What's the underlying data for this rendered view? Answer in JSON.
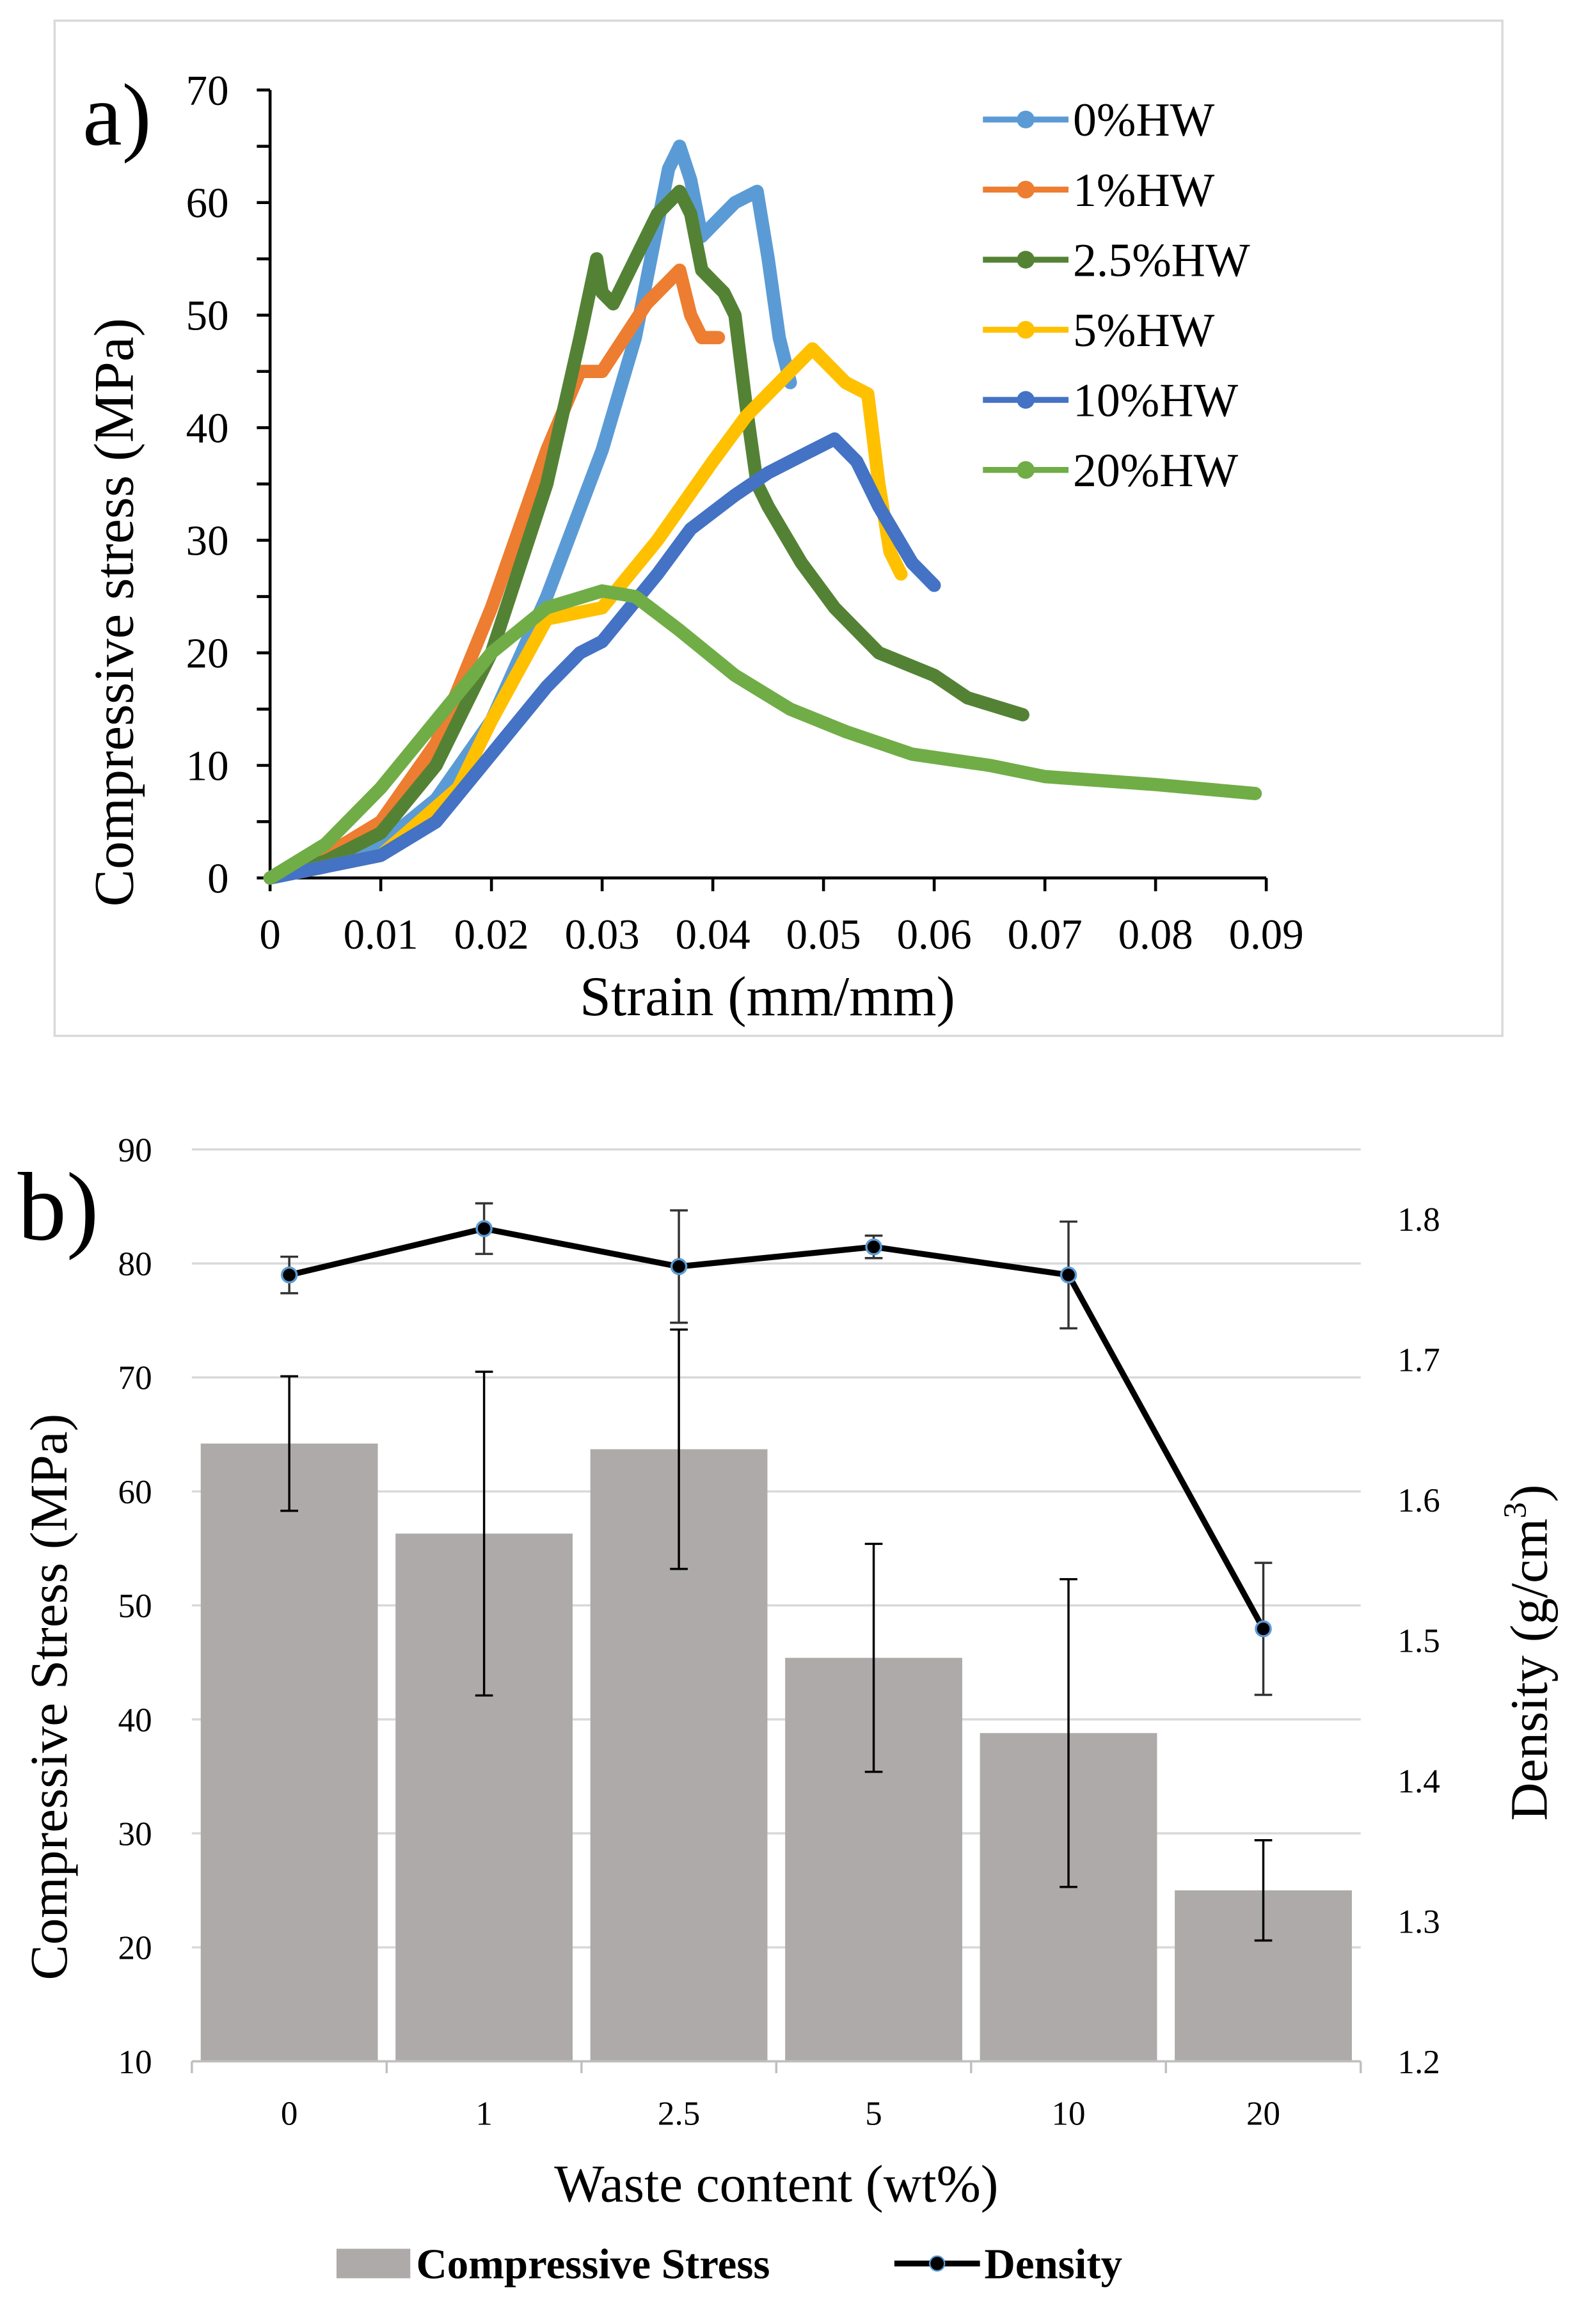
{
  "chart_data": [
    {
      "type": "line",
      "panel_label": "a)",
      "xlabel": "Strain (mm/mm)",
      "ylabel": "Compressive stress (MPa)",
      "xlim": [
        0,
        0.09
      ],
      "ylim": [
        0,
        70
      ],
      "xticks": [
        "0",
        "0.01",
        "0.02",
        "0.03",
        "0.04",
        "0.05",
        "0.06",
        "0.07",
        "0.08",
        "0.09"
      ],
      "yticks": [
        "0",
        "10",
        "20",
        "30",
        "40",
        "50",
        "60",
        "70"
      ],
      "legend_position": "top-right",
      "series": [
        {
          "name": "0%HW",
          "color": "#5b9bd5",
          "points": [
            [
              0,
              0
            ],
            [
              0.005,
              1
            ],
            [
              0.01,
              3
            ],
            [
              0.015,
              7
            ],
            [
              0.02,
              14
            ],
            [
              0.025,
              25
            ],
            [
              0.03,
              38
            ],
            [
              0.033,
              48
            ],
            [
              0.035,
              58
            ],
            [
              0.036,
              63
            ],
            [
              0.037,
              65
            ],
            [
              0.038,
              62
            ],
            [
              0.039,
              57
            ],
            [
              0.04,
              58
            ],
            [
              0.042,
              60
            ],
            [
              0.044,
              61
            ],
            [
              0.045,
              55
            ],
            [
              0.046,
              48
            ],
            [
              0.047,
              44
            ]
          ]
        },
        {
          "name": "1%HW",
          "color": "#ed7d31",
          "points": [
            [
              0,
              0
            ],
            [
              0.005,
              2
            ],
            [
              0.01,
              5
            ],
            [
              0.015,
              12
            ],
            [
              0.02,
              24
            ],
            [
              0.025,
              38
            ],
            [
              0.028,
              45
            ],
            [
              0.03,
              45
            ],
            [
              0.032,
              48
            ],
            [
              0.034,
              51
            ],
            [
              0.036,
              53
            ],
            [
              0.037,
              54
            ],
            [
              0.038,
              50
            ],
            [
              0.039,
              48
            ],
            [
              0.0405,
              48
            ]
          ]
        },
        {
          "name": "2.5%HW",
          "color": "#548235",
          "points": [
            [
              0,
              0
            ],
            [
              0.005,
              1.5
            ],
            [
              0.01,
              4
            ],
            [
              0.015,
              10
            ],
            [
              0.02,
              20
            ],
            [
              0.025,
              35
            ],
            [
              0.028,
              48
            ],
            [
              0.0295,
              55
            ],
            [
              0.03,
              52
            ],
            [
              0.031,
              51
            ],
            [
              0.033,
              55
            ],
            [
              0.035,
              59
            ],
            [
              0.037,
              61
            ],
            [
              0.038,
              59
            ],
            [
              0.039,
              54
            ],
            [
              0.04,
              53
            ],
            [
              0.041,
              52
            ],
            [
              0.042,
              50
            ],
            [
              0.043,
              42
            ],
            [
              0.044,
              35
            ],
            [
              0.045,
              33
            ],
            [
              0.048,
              28
            ],
            [
              0.051,
              24
            ],
            [
              0.055,
              20
            ],
            [
              0.06,
              18
            ],
            [
              0.063,
              16
            ],
            [
              0.068,
              14.5
            ]
          ]
        },
        {
          "name": "5%HW",
          "color": "#ffc000",
          "points": [
            [
              0,
              0
            ],
            [
              0.01,
              2
            ],
            [
              0.017,
              8
            ],
            [
              0.02,
              14
            ],
            [
              0.025,
              23
            ],
            [
              0.03,
              24
            ],
            [
              0.035,
              30
            ],
            [
              0.04,
              37
            ],
            [
              0.043,
              41
            ],
            [
              0.046,
              44
            ],
            [
              0.049,
              47
            ],
            [
              0.05,
              46
            ],
            [
              0.052,
              44
            ],
            [
              0.054,
              43
            ],
            [
              0.055,
              35
            ],
            [
              0.056,
              29
            ],
            [
              0.057,
              27
            ]
          ]
        },
        {
          "name": "10%HW",
          "color": "#4472c4",
          "points": [
            [
              0,
              0
            ],
            [
              0.01,
              2
            ],
            [
              0.015,
              5
            ],
            [
              0.02,
              11
            ],
            [
              0.025,
              17
            ],
            [
              0.028,
              20
            ],
            [
              0.03,
              21
            ],
            [
              0.035,
              27
            ],
            [
              0.038,
              31
            ],
            [
              0.042,
              34
            ],
            [
              0.045,
              36
            ],
            [
              0.048,
              37.5
            ],
            [
              0.051,
              39
            ],
            [
              0.053,
              37
            ],
            [
              0.055,
              33
            ],
            [
              0.058,
              28
            ],
            [
              0.06,
              26
            ]
          ]
        },
        {
          "name": "20%HW",
          "color": "#70ad47",
          "points": [
            [
              0,
              0
            ],
            [
              0.005,
              3
            ],
            [
              0.01,
              8
            ],
            [
              0.015,
              14
            ],
            [
              0.02,
              20
            ],
            [
              0.025,
              24
            ],
            [
              0.03,
              25.5
            ],
            [
              0.033,
              25
            ],
            [
              0.037,
              22
            ],
            [
              0.042,
              18
            ],
            [
              0.047,
              15
            ],
            [
              0.052,
              13
            ],
            [
              0.058,
              11
            ],
            [
              0.065,
              10
            ],
            [
              0.07,
              9
            ],
            [
              0.08,
              8.3
            ],
            [
              0.089,
              7.5
            ]
          ]
        }
      ]
    },
    {
      "type": "bar",
      "panel_label": "b)",
      "xlabel": "Waste content (wt%)",
      "ylabel": "Compressive Stress (MPa)",
      "y2label": "Density (g/cm",
      "y2label_sup": "3",
      "y2label_close": ")",
      "categories": [
        "0",
        "1",
        "2.5",
        "5",
        "10",
        "20"
      ],
      "ylim": [
        10,
        90
      ],
      "yticks": [
        "10",
        "20",
        "30",
        "40",
        "50",
        "60",
        "70",
        "80",
        "90"
      ],
      "y2lim": [
        1.2,
        1.85
      ],
      "y2ticks": [
        "1.2",
        "1.3",
        "1.4",
        "1.5",
        "1.6",
        "1.7",
        "1.8"
      ],
      "grid": true,
      "legend_position": "bottom",
      "series": [
        {
          "name": "Compressive Stress",
          "type": "bar",
          "color": "#aeaaaa",
          "values": [
            64.2,
            56.3,
            63.7,
            45.4,
            38.8,
            25.0
          ],
          "errors": [
            5.9,
            14.2,
            10.5,
            10.0,
            13.5,
            4.4
          ]
        },
        {
          "name": "Density",
          "type": "line",
          "axis": "right",
          "color": "#000000",
          "marker_color": "#5b9bd5",
          "values": [
            1.76,
            1.793,
            1.766,
            1.78,
            1.76,
            1.508
          ],
          "errors": [
            0.013,
            0.018,
            0.04,
            0.008,
            0.038,
            0.047
          ]
        }
      ]
    }
  ]
}
